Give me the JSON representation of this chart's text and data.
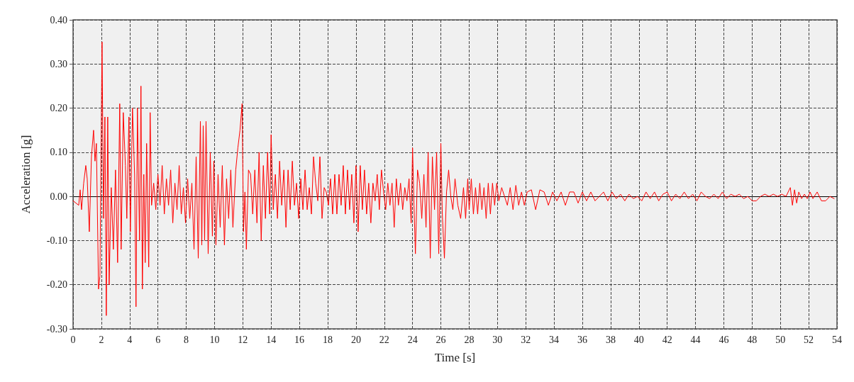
{
  "chart_data": {
    "type": "line",
    "xlabel": "Time [s]",
    "ylabel": "Acceleration [g]",
    "xlim": [
      0,
      54
    ],
    "ylim": [
      -0.3,
      0.4
    ],
    "xticks": [
      0,
      2,
      4,
      6,
      8,
      10,
      12,
      14,
      16,
      18,
      20,
      22,
      24,
      26,
      28,
      30,
      32,
      34,
      36,
      38,
      40,
      42,
      44,
      46,
      48,
      50,
      52,
      54
    ],
    "yticks": [
      {
        "value": -0.3,
        "label": "-0.30"
      },
      {
        "value": -0.2,
        "label": "-0.20"
      },
      {
        "value": -0.1,
        "label": "-0.10"
      },
      {
        "value": 0,
        "label": "0.00"
      },
      {
        "value": 0.1,
        "label": "0.10"
      },
      {
        "value": 0.2,
        "label": "0.20"
      },
      {
        "value": 0.3,
        "label": "0.30"
      },
      {
        "value": 0.4,
        "label": "0.40"
      }
    ],
    "grid": true,
    "marker": "none",
    "line_style": "solid",
    "series": [
      {
        "color": "#ff0000",
        "x": [
          0,
          0.2,
          0.4,
          0.5,
          0.6,
          0.75,
          0.9,
          1.0,
          1.15,
          1.3,
          1.45,
          1.55,
          1.65,
          1.8,
          1.9,
          2.05,
          2.15,
          2.25,
          2.35,
          2.45,
          2.55,
          2.7,
          2.85,
          3.0,
          3.15,
          3.3,
          3.4,
          3.55,
          3.7,
          3.8,
          3.95,
          4.05,
          4.2,
          4.35,
          4.45,
          4.55,
          4.7,
          4.8,
          4.9,
          5.0,
          5.1,
          5.2,
          5.35,
          5.45,
          5.55,
          5.7,
          5.85,
          6.0,
          6.15,
          6.3,
          6.45,
          6.6,
          6.75,
          6.9,
          7.05,
          7.2,
          7.35,
          7.5,
          7.65,
          7.8,
          7.95,
          8.1,
          8.25,
          8.4,
          8.55,
          8.7,
          8.85,
          9.0,
          9.1,
          9.2,
          9.3,
          9.4,
          9.55,
          9.7,
          9.85,
          9.95,
          10.1,
          10.25,
          10.4,
          10.55,
          10.7,
          10.85,
          11.0,
          11.15,
          11.3,
          11.5,
          11.65,
          11.8,
          11.95,
          12.05,
          12.15,
          12.25,
          12.4,
          12.55,
          12.7,
          12.85,
          13.0,
          13.15,
          13.3,
          13.45,
          13.6,
          13.75,
          13.9,
          14.0,
          14.15,
          14.3,
          14.45,
          14.6,
          14.75,
          14.9,
          15.05,
          15.2,
          15.35,
          15.5,
          15.65,
          15.8,
          15.95,
          16.1,
          16.25,
          16.4,
          16.55,
          16.7,
          16.85,
          17.0,
          17.15,
          17.3,
          17.45,
          17.6,
          17.75,
          17.9,
          18.05,
          18.2,
          18.35,
          18.5,
          18.65,
          18.8,
          18.95,
          19.1,
          19.25,
          19.4,
          19.55,
          19.7,
          19.85,
          20.0,
          20.15,
          20.3,
          20.45,
          20.6,
          20.75,
          20.9,
          21.05,
          21.2,
          21.35,
          21.5,
          21.65,
          21.8,
          21.95,
          22.1,
          22.25,
          22.4,
          22.55,
          22.7,
          22.85,
          23.0,
          23.15,
          23.3,
          23.45,
          23.6,
          23.75,
          23.9,
          24.0,
          24.1,
          24.2,
          24.35,
          24.5,
          24.65,
          24.8,
          24.95,
          25.1,
          25.25,
          25.4,
          25.55,
          25.7,
          25.85,
          26.0,
          26.1,
          26.25,
          26.4,
          26.55,
          26.7,
          26.85,
          27.0,
          27.2,
          27.4,
          27.6,
          27.75,
          27.9,
          28.0,
          28.15,
          28.3,
          28.45,
          28.6,
          28.75,
          28.9,
          29.05,
          29.2,
          29.35,
          29.5,
          29.65,
          29.8,
          29.95,
          30.1,
          30.3,
          30.5,
          30.7,
          30.9,
          31.1,
          31.3,
          31.5,
          31.7,
          31.9,
          32.1,
          32.4,
          32.7,
          33.0,
          33.3,
          33.6,
          33.9,
          34.2,
          34.5,
          34.8,
          35.1,
          35.4,
          35.7,
          36.0,
          36.3,
          36.6,
          36.9,
          37.2,
          37.5,
          37.8,
          38.1,
          38.4,
          38.7,
          39.0,
          39.3,
          39.6,
          39.9,
          40.2,
          40.5,
          40.8,
          41.1,
          41.4,
          41.7,
          42.0,
          42.3,
          42.6,
          42.9,
          43.2,
          43.5,
          43.8,
          44.1,
          44.4,
          44.7,
          45.0,
          45.3,
          45.6,
          45.9,
          46.2,
          46.5,
          46.8,
          47.1,
          47.4,
          47.7,
          48.0,
          48.3,
          48.6,
          48.9,
          49.2,
          49.5,
          49.8,
          50.1,
          50.4,
          50.7,
          50.85,
          51.0,
          51.15,
          51.3,
          51.5,
          51.7,
          51.9,
          52.1,
          52.3,
          52.6,
          52.9,
          53.2,
          53.5,
          53.8
        ],
        "values": [
          -0.01,
          -0.015,
          -0.02,
          0.015,
          -0.03,
          0.03,
          0.07,
          0.04,
          -0.08,
          0.09,
          0.15,
          0.08,
          0.12,
          -0.21,
          -0.18,
          0.35,
          -0.05,
          0.18,
          -0.27,
          0.18,
          -0.2,
          0.02,
          -0.12,
          0.06,
          -0.15,
          0.21,
          -0.12,
          0.19,
          0.07,
          -0.05,
          0.18,
          -0.08,
          0.2,
          0.05,
          -0.25,
          0.2,
          -0.1,
          0.25,
          -0.21,
          0.05,
          -0.15,
          0.12,
          -0.16,
          0.19,
          -0.02,
          0.03,
          -0.03,
          0.05,
          -0.02,
          0.07,
          -0.04,
          0.04,
          -0.02,
          0.06,
          -0.06,
          0.03,
          -0.03,
          0.07,
          -0.04,
          0.02,
          -0.06,
          0.04,
          -0.05,
          0.03,
          -0.12,
          0.09,
          -0.14,
          0.17,
          -0.11,
          0.16,
          -0.1,
          0.17,
          -0.13,
          0.1,
          -0.09,
          0.08,
          -0.11,
          0.05,
          -0.07,
          0.07,
          -0.11,
          0.04,
          -0.05,
          0.06,
          -0.07,
          0.06,
          0.11,
          0.15,
          0.21,
          -0.08,
          0.01,
          -0.12,
          0.06,
          0.05,
          -0.04,
          0.06,
          -0.06,
          0.1,
          -0.1,
          0.07,
          -0.05,
          0.1,
          -0.04,
          0.14,
          -0.03,
          0.05,
          -0.05,
          0.08,
          -0.02,
          0.06,
          -0.07,
          0.06,
          -0.03,
          0.08,
          -0.02,
          0.03,
          -0.05,
          0.04,
          -0.03,
          0.06,
          -0.03,
          0.02,
          -0.04,
          0.09,
          0.03,
          -0.01,
          0.09,
          -0.05,
          0.02,
          0.01,
          -0.02,
          0.04,
          -0.04,
          0.05,
          -0.04,
          0.05,
          -0.02,
          0.07,
          -0.04,
          0.06,
          -0.03,
          0.05,
          -0.06,
          0.07,
          -0.08,
          0.07,
          -0.03,
          0.06,
          -0.04,
          0.03,
          -0.06,
          0.03,
          -0.01,
          0.05,
          -0.03,
          0.06,
          0.01,
          -0.03,
          0.03,
          -0.02,
          0.03,
          -0.07,
          0.04,
          -0.02,
          0.03,
          -0.03,
          0.02,
          -0.01,
          0.04,
          -0.06,
          0.11,
          -0.02,
          -0.13,
          0.06,
          0.03,
          -0.05,
          0.05,
          -0.07,
          0.1,
          -0.14,
          0.09,
          -0.03,
          0.1,
          -0.13,
          0.12,
          -0.04,
          -0.14,
          0.01,
          0.06,
          0.0,
          -0.03,
          0.04,
          -0.02,
          -0.05,
          0.02,
          -0.05,
          0.04,
          -0.03,
          0.04,
          -0.04,
          0.02,
          -0.04,
          0.03,
          -0.03,
          0.02,
          -0.05,
          0.03,
          -0.04,
          0.03,
          -0.02,
          0.03,
          -0.01,
          0.02,
          0.0,
          -0.02,
          0.02,
          -0.03,
          0.025,
          -0.02,
          0.01,
          -0.02,
          0.01,
          0.015,
          -0.03,
          0.015,
          0.01,
          -0.02,
          0.01,
          -0.01,
          0.01,
          -0.02,
          0.01,
          0.01,
          -0.015,
          0.01,
          -0.01,
          0.01,
          -0.01,
          0.0,
          0.01,
          -0.01,
          0.01,
          -0.005,
          0.005,
          -0.01,
          0.005,
          -0.005,
          0.0,
          -0.01,
          0.01,
          -0.005,
          0.01,
          -0.01,
          0.005,
          0.01,
          -0.01,
          0.005,
          -0.005,
          0.01,
          -0.005,
          0.005,
          -0.01,
          0.01,
          0.0,
          -0.005,
          0.005,
          -0.005,
          0.01,
          -0.005,
          0.005,
          0.0,
          0.005,
          -0.005,
          0.0,
          -0.01,
          -0.01,
          0.0,
          0.005,
          0.0,
          0.005,
          0.0,
          0.005,
          0.0,
          0.02,
          -0.02,
          0.015,
          -0.015,
          0.01,
          -0.005,
          0.005,
          -0.005,
          0.01,
          -0.005,
          0.01,
          -0.01,
          -0.01,
          0.0,
          -0.005
        ]
      }
    ]
  }
}
